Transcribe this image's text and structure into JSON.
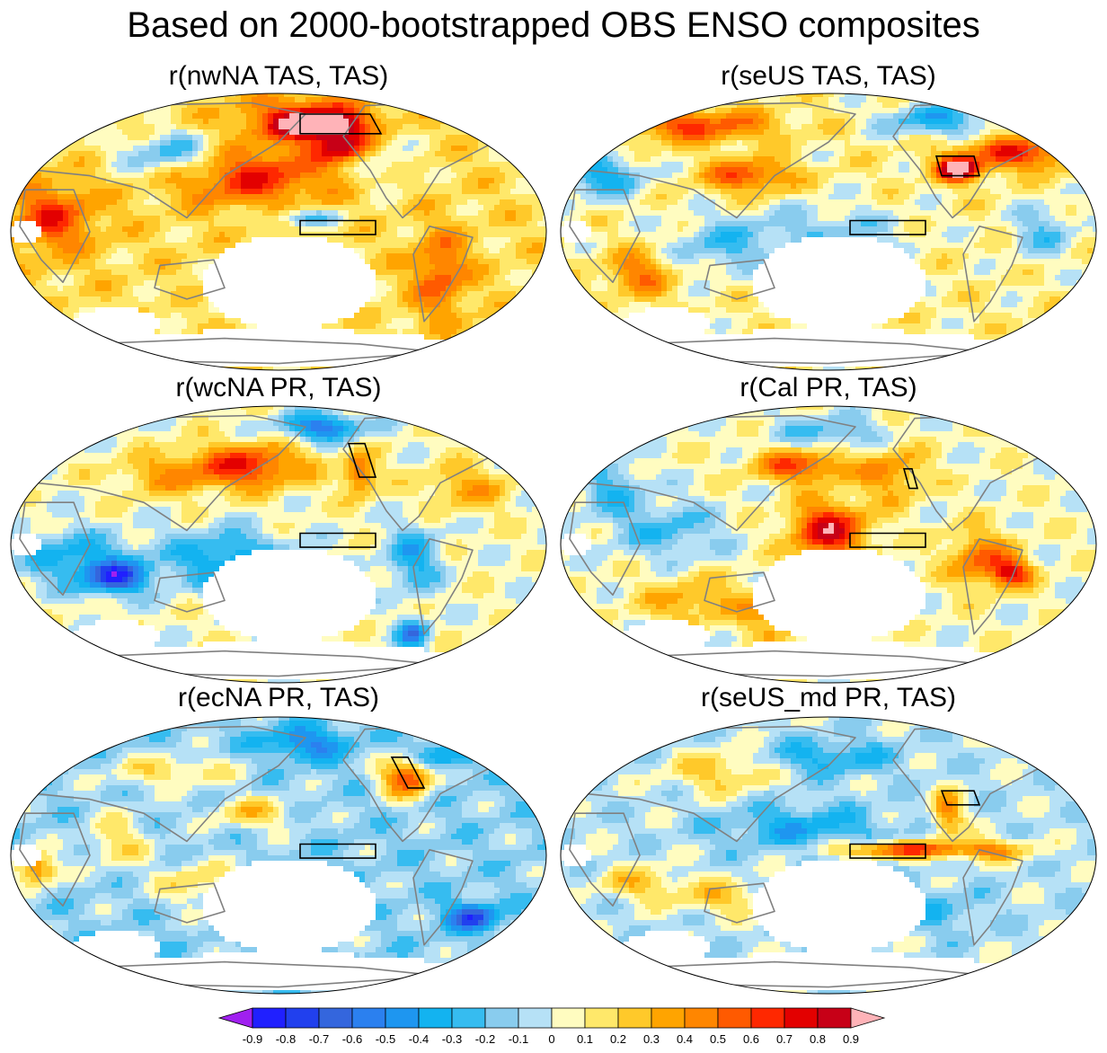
{
  "title": "Based on 2000-bootstrapped OBS ENSO composites",
  "panels": [
    {
      "title": "r(nwNA TAS, TAS)",
      "base": 0.18,
      "blobs": [
        [
          0.58,
          0.12,
          0.06,
          0.04,
          0.85
        ],
        [
          0.55,
          0.1,
          0.12,
          0.08,
          0.55
        ],
        [
          0.45,
          0.3,
          0.14,
          0.1,
          0.5
        ],
        [
          0.3,
          0.22,
          0.1,
          0.08,
          -0.45
        ],
        [
          0.55,
          0.45,
          0.07,
          0.03,
          -0.4
        ],
        [
          0.08,
          0.45,
          0.08,
          0.12,
          0.45
        ],
        [
          0.7,
          0.25,
          0.06,
          0.1,
          -0.2
        ],
        [
          0.8,
          0.65,
          0.05,
          0.15,
          0.4
        ],
        [
          0.5,
          0.75,
          0.12,
          0.08,
          -0.2
        ],
        [
          0.62,
          0.2,
          0.05,
          0.05,
          0.6
        ]
      ],
      "boxes": [
        {
          "label": "nwNA",
          "poly": [
            [
              0.54,
              0.08
            ],
            [
              0.67,
              0.08
            ],
            [
              0.69,
              0.15
            ],
            [
              0.54,
              0.15
            ]
          ]
        },
        {
          "label": "Nino",
          "poly": [
            [
              0.54,
              0.46
            ],
            [
              0.68,
              0.46
            ],
            [
              0.68,
              0.51
            ],
            [
              0.54,
              0.51
            ]
          ]
        }
      ]
    },
    {
      "title": "r(seUS TAS, TAS)",
      "base": 0.1,
      "blobs": [
        [
          0.25,
          0.12,
          0.15,
          0.06,
          0.5
        ],
        [
          0.74,
          0.28,
          0.04,
          0.04,
          0.9
        ],
        [
          0.85,
          0.22,
          0.12,
          0.06,
          0.55
        ],
        [
          0.7,
          0.1,
          0.1,
          0.06,
          -0.45
        ],
        [
          0.08,
          0.3,
          0.08,
          0.08,
          -0.45
        ],
        [
          0.35,
          0.3,
          0.08,
          0.06,
          0.5
        ],
        [
          0.5,
          0.5,
          0.15,
          0.1,
          -0.25
        ],
        [
          0.3,
          0.55,
          0.1,
          0.1,
          -0.3
        ],
        [
          0.15,
          0.65,
          0.06,
          0.08,
          0.4
        ],
        [
          0.9,
          0.5,
          0.06,
          0.1,
          -0.3
        ]
      ],
      "boxes": [
        {
          "label": "seUS",
          "poly": [
            [
              0.7,
              0.23
            ],
            [
              0.77,
              0.23
            ],
            [
              0.78,
              0.3
            ],
            [
              0.71,
              0.3
            ]
          ]
        },
        {
          "label": "Nino",
          "poly": [
            [
              0.54,
              0.46
            ],
            [
              0.68,
              0.46
            ],
            [
              0.68,
              0.51
            ],
            [
              0.54,
              0.51
            ]
          ]
        }
      ]
    },
    {
      "title": "r(wcNA PR, TAS)",
      "base": 0.05,
      "blobs": [
        [
          0.45,
          0.22,
          0.1,
          0.08,
          0.6
        ],
        [
          0.58,
          0.08,
          0.08,
          0.05,
          -0.6
        ],
        [
          0.65,
          0.25,
          0.03,
          0.08,
          0.5
        ],
        [
          0.12,
          0.55,
          0.1,
          0.1,
          -0.4
        ],
        [
          0.4,
          0.55,
          0.12,
          0.1,
          -0.45
        ],
        [
          0.2,
          0.62,
          0.06,
          0.06,
          -0.7
        ],
        [
          0.75,
          0.55,
          0.05,
          0.12,
          -0.4
        ],
        [
          0.3,
          0.25,
          0.1,
          0.08,
          0.3
        ],
        [
          0.85,
          0.3,
          0.08,
          0.08,
          0.3
        ],
        [
          0.75,
          0.82,
          0.03,
          0.05,
          -0.6
        ]
      ],
      "boxes": [
        {
          "label": "wcNA",
          "poly": [
            [
              0.63,
              0.14
            ],
            [
              0.66,
              0.14
            ],
            [
              0.68,
              0.26
            ],
            [
              0.65,
              0.26
            ]
          ]
        },
        {
          "label": "Nino",
          "poly": [
            [
              0.54,
              0.46
            ],
            [
              0.68,
              0.46
            ],
            [
              0.68,
              0.51
            ],
            [
              0.54,
              0.51
            ]
          ]
        }
      ]
    },
    {
      "title": "r(Cal PR, TAS)",
      "base": 0.05,
      "blobs": [
        [
          0.5,
          0.45,
          0.07,
          0.1,
          0.75
        ],
        [
          0.45,
          0.22,
          0.09,
          0.06,
          0.55
        ],
        [
          0.62,
          0.25,
          0.06,
          0.1,
          0.35
        ],
        [
          0.78,
          0.55,
          0.06,
          0.1,
          0.45
        ],
        [
          0.84,
          0.6,
          0.04,
          0.05,
          0.6
        ],
        [
          0.5,
          0.1,
          0.1,
          0.06,
          -0.3
        ],
        [
          0.2,
          0.45,
          0.1,
          0.1,
          -0.3
        ],
        [
          0.25,
          0.7,
          0.1,
          0.08,
          0.3
        ],
        [
          0.4,
          0.75,
          0.06,
          0.1,
          0.3
        ],
        [
          0.1,
          0.3,
          0.06,
          0.1,
          -0.3
        ]
      ],
      "boxes": [
        {
          "label": "Cal",
          "poly": [
            [
              0.64,
              0.23
            ],
            [
              0.655,
              0.23
            ],
            [
              0.665,
              0.3
            ],
            [
              0.65,
              0.3
            ]
          ]
        },
        {
          "label": "Nino",
          "poly": [
            [
              0.54,
              0.46
            ],
            [
              0.68,
              0.46
            ],
            [
              0.68,
              0.51
            ],
            [
              0.54,
              0.51
            ]
          ]
        }
      ]
    },
    {
      "title": "r(ecNA PR, TAS)",
      "base": -0.12,
      "blobs": [
        [
          0.74,
          0.22,
          0.05,
          0.07,
          0.75
        ],
        [
          0.55,
          0.1,
          0.08,
          0.06,
          -0.4
        ],
        [
          0.3,
          0.2,
          0.12,
          0.06,
          0.3
        ],
        [
          0.8,
          0.15,
          0.06,
          0.06,
          -0.3
        ],
        [
          0.45,
          0.35,
          0.08,
          0.06,
          0.35
        ],
        [
          0.86,
          0.72,
          0.05,
          0.05,
          -0.6
        ],
        [
          0.05,
          0.55,
          0.04,
          0.06,
          0.6
        ],
        [
          0.35,
          0.6,
          0.08,
          0.08,
          0.3
        ],
        [
          0.2,
          0.45,
          0.06,
          0.1,
          0.3
        ]
      ],
      "boxes": [
        {
          "label": "ecNA",
          "poly": [
            [
              0.71,
              0.15
            ],
            [
              0.74,
              0.15
            ],
            [
              0.77,
              0.26
            ],
            [
              0.74,
              0.26
            ]
          ]
        },
        {
          "label": "Nino",
          "poly": [
            [
              0.54,
              0.46
            ],
            [
              0.68,
              0.46
            ],
            [
              0.68,
              0.51
            ],
            [
              0.54,
              0.51
            ]
          ]
        }
      ]
    },
    {
      "title": "r(seUS_md PR, TAS)",
      "base": -0.05,
      "blobs": [
        [
          0.63,
          0.48,
          0.12,
          0.03,
          0.65
        ],
        [
          0.72,
          0.35,
          0.03,
          0.08,
          0.5
        ],
        [
          0.8,
          0.48,
          0.08,
          0.04,
          0.4
        ],
        [
          0.3,
          0.2,
          0.1,
          0.08,
          0.3
        ],
        [
          0.45,
          0.4,
          0.15,
          0.08,
          -0.3
        ],
        [
          0.15,
          0.6,
          0.08,
          0.06,
          0.3
        ],
        [
          0.5,
          0.15,
          0.12,
          0.06,
          -0.3
        ],
        [
          0.3,
          0.65,
          0.08,
          0.06,
          0.3
        ],
        [
          0.7,
          0.7,
          0.08,
          0.08,
          -0.2
        ]
      ],
      "boxes": [
        {
          "label": "seUS_md",
          "poly": [
            [
              0.71,
              0.27
            ],
            [
              0.77,
              0.27
            ],
            [
              0.78,
              0.32
            ],
            [
              0.72,
              0.32
            ]
          ]
        },
        {
          "label": "Nino",
          "poly": [
            [
              0.54,
              0.46
            ],
            [
              0.68,
              0.46
            ],
            [
              0.68,
              0.51
            ],
            [
              0.54,
              0.51
            ]
          ]
        }
      ]
    }
  ],
  "colorbar": {
    "labels": [
      "-0.9",
      "-0.8",
      "-0.7",
      "-0.6",
      "-0.5",
      "-0.4",
      "-0.3",
      "-0.2",
      "-0.1",
      "0",
      "0.1",
      "0.2",
      "0.3",
      "0.4",
      "0.5",
      "0.6",
      "0.7",
      "0.8",
      "0.9"
    ],
    "colors": [
      "#a020f0",
      "#2020ff",
      "#2140ee",
      "#3466dd",
      "#2b80ef",
      "#1e96f0",
      "#13b3f0",
      "#36bcf0",
      "#89ccee",
      "#b6e1f6",
      "#fffcc0",
      "#ffe86a",
      "#ffc92a",
      "#ffa400",
      "#ff8600",
      "#ff5a00",
      "#ff2800",
      "#e30000",
      "#c70017",
      "#ffb3b8"
    ]
  }
}
